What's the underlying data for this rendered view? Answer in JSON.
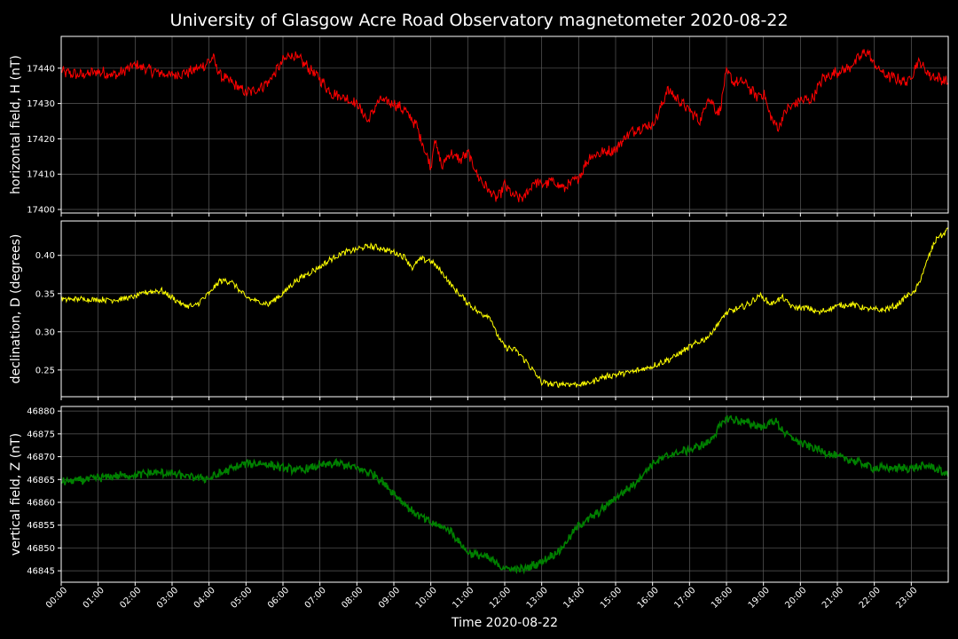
{
  "chart_data": {
    "type": "line",
    "title": "University of Glasgow Acre Road Observatory magnetometer 2020-08-22",
    "xlabel": "Time 2020-08-22",
    "x_unit": "hours",
    "xlim": [
      0,
      24
    ],
    "x_ticks": [
      "00:00",
      "01:00",
      "02:00",
      "03:00",
      "04:00",
      "05:00",
      "06:00",
      "07:00",
      "08:00",
      "09:00",
      "10:00",
      "11:00",
      "12:00",
      "13:00",
      "14:00",
      "15:00",
      "16:00",
      "17:00",
      "18:00",
      "19:00",
      "20:00",
      "21:00",
      "22:00",
      "23:00"
    ],
    "grid": true,
    "panels": [
      {
        "ylabel": "horizontal field, H (nT)",
        "ylim": [
          17399,
          17449
        ],
        "yticks": [
          17400,
          17410,
          17420,
          17430,
          17440
        ],
        "color": "#ff0000",
        "noise": 1.4,
        "points": [
          [
            0,
            17439
          ],
          [
            0.5,
            17438
          ],
          [
            1,
            17439
          ],
          [
            1.5,
            17438
          ],
          [
            2,
            17441
          ],
          [
            2.5,
            17439
          ],
          [
            3,
            17438
          ],
          [
            3.5,
            17439
          ],
          [
            3.9,
            17441
          ],
          [
            4.1,
            17443
          ],
          [
            4.3,
            17438
          ],
          [
            4.6,
            17436
          ],
          [
            5,
            17433
          ],
          [
            5.3,
            17434
          ],
          [
            5.6,
            17436
          ],
          [
            6,
            17442
          ],
          [
            6.2,
            17444
          ],
          [
            6.5,
            17442
          ],
          [
            7,
            17437
          ],
          [
            7.3,
            17433
          ],
          [
            7.6,
            17432
          ],
          [
            8,
            17430
          ],
          [
            8.3,
            17425
          ],
          [
            8.6,
            17431
          ],
          [
            9,
            17430
          ],
          [
            9.3,
            17428
          ],
          [
            9.6,
            17424
          ],
          [
            9.8,
            17418
          ],
          [
            10,
            17412
          ],
          [
            10.1,
            17420
          ],
          [
            10.3,
            17412
          ],
          [
            10.5,
            17416
          ],
          [
            10.8,
            17414
          ],
          [
            11,
            17416
          ],
          [
            11.3,
            17409
          ],
          [
            11.6,
            17405
          ],
          [
            11.8,
            17403
          ],
          [
            12,
            17407
          ],
          [
            12.2,
            17404
          ],
          [
            12.5,
            17403
          ],
          [
            12.8,
            17408
          ],
          [
            13,
            17407
          ],
          [
            13.3,
            17408
          ],
          [
            13.6,
            17406
          ],
          [
            14,
            17409
          ],
          [
            14.3,
            17415
          ],
          [
            14.6,
            17416
          ],
          [
            15,
            17417
          ],
          [
            15.3,
            17421
          ],
          [
            15.6,
            17423
          ],
          [
            16,
            17424
          ],
          [
            16.2,
            17428
          ],
          [
            16.4,
            17434
          ],
          [
            16.6,
            17432
          ],
          [
            16.8,
            17430
          ],
          [
            17,
            17428
          ],
          [
            17.3,
            17425
          ],
          [
            17.5,
            17432
          ],
          [
            17.8,
            17427
          ],
          [
            18,
            17439
          ],
          [
            18.2,
            17436
          ],
          [
            18.5,
            17436
          ],
          [
            18.8,
            17432
          ],
          [
            19,
            17433
          ],
          [
            19.2,
            17426
          ],
          [
            19.4,
            17423
          ],
          [
            19.6,
            17428
          ],
          [
            20,
            17431
          ],
          [
            20.3,
            17431
          ],
          [
            20.6,
            17437
          ],
          [
            21,
            17439
          ],
          [
            21.3,
            17440
          ],
          [
            21.6,
            17443
          ],
          [
            21.8,
            17445
          ],
          [
            22,
            17441
          ],
          [
            22.3,
            17438
          ],
          [
            22.6,
            17437
          ],
          [
            22.9,
            17436
          ],
          [
            23.2,
            17442
          ],
          [
            23.5,
            17438
          ],
          [
            23.8,
            17437
          ],
          [
            24,
            17436
          ]
        ]
      },
      {
        "ylabel": "declination, D (degrees)",
        "ylim": [
          0.215,
          0.445
        ],
        "yticks": [
          0.25,
          0.3,
          0.35,
          0.4
        ],
        "color": "#ffff00",
        "noise": 0.0035,
        "points": [
          [
            0,
            0.342
          ],
          [
            0.5,
            0.343
          ],
          [
            1,
            0.342
          ],
          [
            1.5,
            0.342
          ],
          [
            2,
            0.346
          ],
          [
            2.3,
            0.352
          ],
          [
            2.7,
            0.354
          ],
          [
            3,
            0.345
          ],
          [
            3.3,
            0.335
          ],
          [
            3.6,
            0.333
          ],
          [
            4,
            0.35
          ],
          [
            4.3,
            0.367
          ],
          [
            4.6,
            0.366
          ],
          [
            5,
            0.345
          ],
          [
            5.3,
            0.34
          ],
          [
            5.6,
            0.336
          ],
          [
            6,
            0.35
          ],
          [
            6.3,
            0.365
          ],
          [
            6.6,
            0.374
          ],
          [
            7,
            0.385
          ],
          [
            7.3,
            0.395
          ],
          [
            7.6,
            0.403
          ],
          [
            8,
            0.408
          ],
          [
            8.3,
            0.412
          ],
          [
            8.6,
            0.41
          ],
          [
            9,
            0.404
          ],
          [
            9.3,
            0.398
          ],
          [
            9.5,
            0.383
          ],
          [
            9.7,
            0.395
          ],
          [
            10,
            0.393
          ],
          [
            10.3,
            0.378
          ],
          [
            10.6,
            0.358
          ],
          [
            11,
            0.338
          ],
          [
            11.3,
            0.325
          ],
          [
            11.6,
            0.32
          ],
          [
            11.8,
            0.295
          ],
          [
            12,
            0.28
          ],
          [
            12.3,
            0.276
          ],
          [
            12.6,
            0.26
          ],
          [
            13,
            0.234
          ],
          [
            13.3,
            0.231
          ],
          [
            13.6,
            0.232
          ],
          [
            14,
            0.231
          ],
          [
            14.3,
            0.233
          ],
          [
            14.6,
            0.24
          ],
          [
            15,
            0.244
          ],
          [
            15.5,
            0.248
          ],
          [
            16,
            0.255
          ],
          [
            16.5,
            0.265
          ],
          [
            17,
            0.28
          ],
          [
            17.5,
            0.293
          ],
          [
            18,
            0.325
          ],
          [
            18.3,
            0.33
          ],
          [
            18.6,
            0.336
          ],
          [
            18.9,
            0.348
          ],
          [
            19.2,
            0.336
          ],
          [
            19.5,
            0.345
          ],
          [
            19.8,
            0.332
          ],
          [
            20.2,
            0.331
          ],
          [
            20.5,
            0.325
          ],
          [
            21,
            0.334
          ],
          [
            21.4,
            0.336
          ],
          [
            21.8,
            0.33
          ],
          [
            22.2,
            0.328
          ],
          [
            22.6,
            0.334
          ],
          [
            22.9,
            0.348
          ],
          [
            23.1,
            0.352
          ],
          [
            23.3,
            0.375
          ],
          [
            23.5,
            0.402
          ],
          [
            23.7,
            0.424
          ],
          [
            23.9,
            0.428
          ],
          [
            24,
            0.436
          ]
        ]
      },
      {
        "ylabel": "vertical field, Z (nT)",
        "ylim": [
          46842.5,
          46881
        ],
        "yticks": [
          46845,
          46850,
          46855,
          46860,
          46865,
          46870,
          46875,
          46880
        ],
        "color": "#008000",
        "noise": 0.8,
        "points": [
          [
            0,
            46864.5
          ],
          [
            0.5,
            46864.8
          ],
          [
            1,
            46865.3
          ],
          [
            1.5,
            46865.8
          ],
          [
            2,
            46866
          ],
          [
            2.5,
            46866.5
          ],
          [
            3,
            46866.3
          ],
          [
            3.5,
            46865.5
          ],
          [
            4,
            46865.2
          ],
          [
            4.5,
            46867
          ],
          [
            5,
            46868.5
          ],
          [
            5.5,
            46868.5
          ],
          [
            6,
            46867.5
          ],
          [
            6.5,
            46867
          ],
          [
            7,
            46868
          ],
          [
            7.5,
            46868.5
          ],
          [
            8,
            46867.5
          ],
          [
            8.5,
            46866
          ],
          [
            9,
            46862
          ],
          [
            9.5,
            46858
          ],
          [
            10,
            46855.5
          ],
          [
            10.5,
            46854
          ],
          [
            11,
            46849
          ],
          [
            11.5,
            46848
          ],
          [
            12,
            46845.5
          ],
          [
            12.5,
            46845.3
          ],
          [
            13,
            46847
          ],
          [
            13.5,
            46849.5
          ],
          [
            14,
            46855
          ],
          [
            14.5,
            46857.5
          ],
          [
            15,
            46861
          ],
          [
            15.5,
            46864
          ],
          [
            16,
            46868.5
          ],
          [
            16.5,
            46870.5
          ],
          [
            17,
            46871.5
          ],
          [
            17.5,
            46873
          ],
          [
            18,
            46878.5
          ],
          [
            18.5,
            46877.5
          ],
          [
            19,
            46876.5
          ],
          [
            19.3,
            46878
          ],
          [
            19.6,
            46875
          ],
          [
            20,
            46873
          ],
          [
            20.5,
            46871.5
          ],
          [
            21,
            46870
          ],
          [
            21.5,
            46869
          ],
          [
            22,
            46867.5
          ],
          [
            22.5,
            46867.5
          ],
          [
            23,
            46867.5
          ],
          [
            23.5,
            46868
          ],
          [
            24,
            46866
          ]
        ]
      }
    ]
  }
}
